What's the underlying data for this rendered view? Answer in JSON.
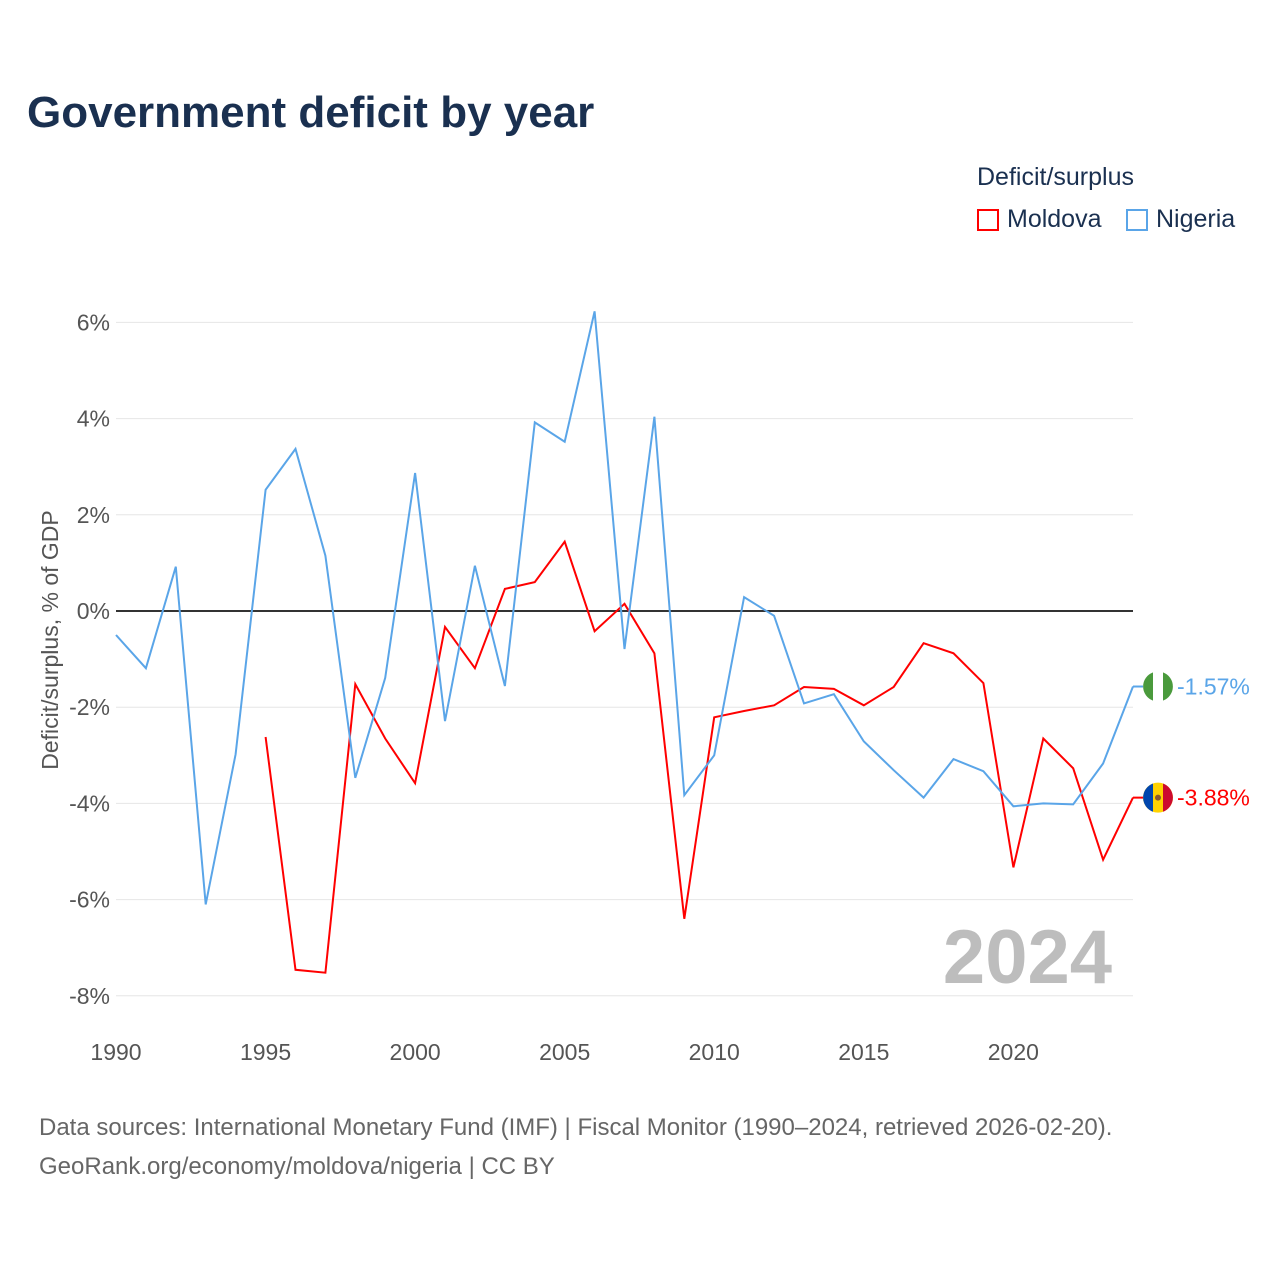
{
  "chart_data": {
    "type": "line",
    "title": "Government deficit by year",
    "ylabel": "Deficit/surplus, % of GDP",
    "xlabel": "",
    "legend_title": "Deficit/surplus",
    "legend_position": "top-right",
    "ylim": [
      -8,
      6.5
    ],
    "xlim": [
      1990,
      2024
    ],
    "yticks": [
      6,
      4,
      2,
      0,
      -2,
      -4,
      -6,
      -8
    ],
    "ytick_labels": [
      "6%",
      "4%",
      "2%",
      "0%",
      "-2%",
      "-4%",
      "-6%",
      "-8%"
    ],
    "xticks": [
      1990,
      1995,
      2000,
      2005,
      2010,
      2015,
      2020
    ],
    "xtick_labels": [
      "1990",
      "1995",
      "2000",
      "2005",
      "2010",
      "2015",
      "2020"
    ],
    "year_watermark": "2024",
    "grid": true,
    "series": [
      {
        "name": "Moldova",
        "color": "#ff0000",
        "end_label": "-3.88%",
        "x": [
          1995,
          1996,
          1997,
          1998,
          1999,
          2000,
          2001,
          2002,
          2003,
          2004,
          2005,
          2006,
          2007,
          2008,
          2009,
          2010,
          2011,
          2012,
          2013,
          2014,
          2015,
          2016,
          2017,
          2018,
          2019,
          2020,
          2021,
          2022,
          2023,
          2024
        ],
        "values": [
          -2.62,
          -7.46,
          -7.52,
          -1.52,
          -2.65,
          -3.58,
          -0.33,
          -1.19,
          0.46,
          0.6,
          1.44,
          -0.42,
          0.15,
          -0.88,
          -6.4,
          -2.21,
          -2.08,
          -1.96,
          -1.58,
          -1.62,
          -1.96,
          -1.58,
          -0.67,
          -0.88,
          -1.5,
          -5.33,
          -2.65,
          -3.27,
          -5.17,
          -3.88
        ]
      },
      {
        "name": "Nigeria",
        "color": "#5aa5e8",
        "end_label": "-1.57%",
        "x": [
          1990,
          1991,
          1992,
          1993,
          1994,
          1995,
          1996,
          1997,
          1998,
          1999,
          2000,
          2001,
          2002,
          2003,
          2004,
          2005,
          2006,
          2007,
          2008,
          2009,
          2010,
          2011,
          2012,
          2013,
          2014,
          2015,
          2016,
          2017,
          2018,
          2019,
          2020,
          2021,
          2022,
          2023,
          2024
        ],
        "values": [
          -0.5,
          -1.19,
          0.92,
          -6.1,
          -2.98,
          2.52,
          3.37,
          1.15,
          -3.47,
          -1.39,
          2.87,
          -2.29,
          0.94,
          -1.56,
          3.92,
          3.52,
          6.23,
          -0.79,
          4.04,
          -3.83,
          -3.0,
          0.29,
          -0.1,
          -1.92,
          -1.73,
          -2.71,
          -3.31,
          -3.88,
          -3.08,
          -3.33,
          -4.06,
          -4.0,
          -4.02,
          -3.17,
          -1.57
        ]
      }
    ]
  },
  "footer": {
    "line1": "Data sources: International Monetary Fund (IMF) | Fiscal Monitor (1990–2024, retrieved 2026-02-20).",
    "line2": "GeoRank.org/economy/moldova/nigeria | CC BY"
  }
}
